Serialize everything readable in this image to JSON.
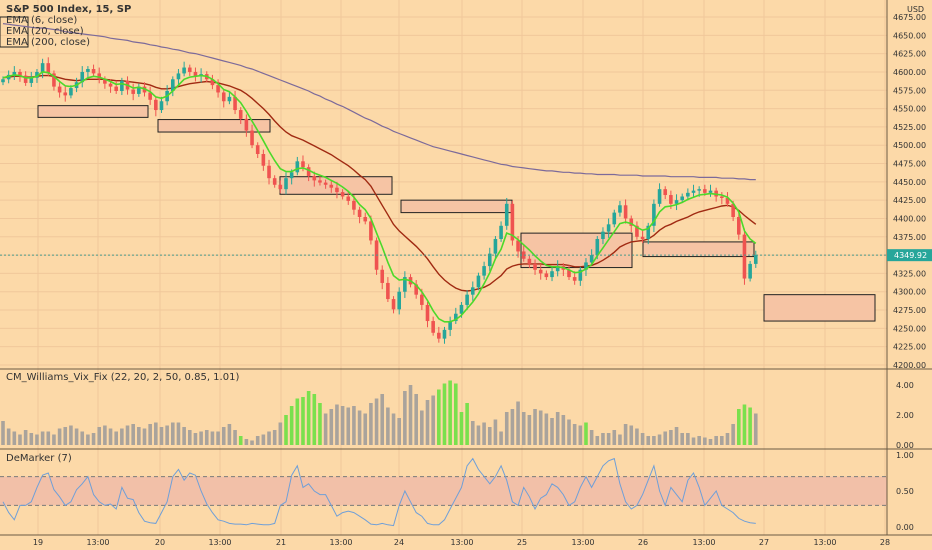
{
  "header": {
    "symbol": "S&P 500 Index, 15, SP",
    "currency": "USD",
    "ema_fast": "EMA (6, close)",
    "ema_mid": "EMA (20, close)",
    "ema_slow": "EMA (200, close)"
  },
  "colors": {
    "background": "#fcd9a8",
    "grid": "#f0c79a",
    "up": "#26a69a",
    "down": "#ef5350",
    "ema_fast": "#4cd92a",
    "ema_mid": "#a02a12",
    "ema_slow": "#7c6a9a",
    "zone_fill": "#f6c4a4",
    "vix_high": "#7ae04d",
    "vix_low": "#a9a39c",
    "dem_line": "#6f9fd8",
    "dem_band": "#f2c0a8"
  },
  "price_panel": {
    "last_price": "4349.92",
    "y_ticks": [
      "4675.00",
      "4650.00",
      "4625.00",
      "4600.00",
      "4575.00",
      "4550.00",
      "4525.00",
      "4500.00",
      "4475.00",
      "4450.00",
      "4425.00",
      "4400.00",
      "4375.00",
      "4350.00",
      "4325.00",
      "4300.00",
      "4275.00",
      "4250.00",
      "4225.00",
      "4200.00"
    ]
  },
  "vix_panel": {
    "title": "CM_Williams_Vix_Fix (22, 20, 2, 50, 0.85, 1.01)",
    "y_ticks": [
      "4.00",
      "2.00",
      "0.00"
    ]
  },
  "dem_panel": {
    "title": "DeMarker (7)",
    "y_ticks": [
      "1.00",
      "0.50",
      "0.00"
    ]
  },
  "x_ticks": [
    "19",
    "13:00",
    "20",
    "13:00",
    "21",
    "13:00",
    "24",
    "13:00",
    "25",
    "13:00",
    "26",
    "13:00",
    "27",
    "13:00",
    "28"
  ],
  "chart_data": {
    "type": "candlestick",
    "title": "S&P 500 Index, 15, SP",
    "ylim": [
      4200,
      4685
    ],
    "closes": [
      4590,
      4596,
      4600,
      4595,
      4585,
      4592,
      4600,
      4612,
      4598,
      4580,
      4572,
      4568,
      4578,
      4586,
      4600,
      4604,
      4598,
      4590,
      4584,
      4580,
      4574,
      4588,
      4576,
      4570,
      4580,
      4572,
      4562,
      4548,
      4560,
      4574,
      4590,
      4598,
      4606,
      4600,
      4594,
      4597,
      4590,
      4582,
      4572,
      4560,
      4566,
      4548,
      4536,
      4520,
      4500,
      4488,
      4472,
      4455,
      4446,
      4440,
      4455,
      4463,
      4478,
      4470,
      4458,
      4452,
      4449,
      4446,
      4442,
      4436,
      4430,
      4424,
      4412,
      4402,
      4396,
      4370,
      4330,
      4312,
      4290,
      4276,
      4300,
      4320,
      4310,
      4296,
      4282,
      4260,
      4244,
      4236,
      4248,
      4260,
      4270,
      4282,
      4296,
      4306,
      4322,
      4335,
      4352,
      4372,
      4390,
      4420,
      4370,
      4355,
      4345,
      4338,
      4330,
      4325,
      4320,
      4328,
      4335,
      4330,
      4320,
      4315,
      4330,
      4340,
      4350,
      4372,
      4382,
      4392,
      4408,
      4418,
      4400,
      4390,
      4375,
      4372,
      4390,
      4420,
      4440,
      4432,
      4420,
      4425,
      4430,
      4435,
      4438,
      4440,
      4435,
      4438,
      4430,
      4428,
      4420,
      4402,
      4378,
      4318,
      4338,
      4350
    ],
    "ema_fast": [
      4592,
      4594,
      4596,
      4595,
      4592,
      4592,
      4594,
      4600,
      4599,
      4594,
      4587,
      4581,
      4580,
      4582,
      4587,
      4592,
      4594,
      4593,
      4590,
      4587,
      4583,
      4584,
      4582,
      4578,
      4579,
      4577,
      4573,
      4566,
      4564,
      4567,
      4574,
      4582,
      4590,
      4593,
      4594,
      4595,
      4594,
      4590,
      4584,
      4576,
      4573,
      4566,
      4558,
      4546,
      4533,
      4520,
      4506,
      4492,
      4479,
      4468,
      4464,
      4464,
      4468,
      4469,
      4466,
      4462,
      4459,
      4456,
      4452,
      4448,
      4443,
      4437,
      4429,
      4419,
      4412,
      4400,
      4380,
      4361,
      4340,
      4322,
      4316,
      4317,
      4315,
      4309,
      4300,
      4288,
      4274,
      4263,
      4259,
      4259,
      4262,
      4268,
      4277,
      4286,
      4297,
      4311,
      4326,
      4345,
      4358,
      4380,
      4377,
      4371,
      4364,
      4357,
      4349,
      4342,
      4336,
      4334,
      4334,
      4333,
      4330,
      4326,
      4327,
      4331,
      4337,
      4349,
      4360,
      4371,
      4382,
      4393,
      4395,
      4393,
      4388,
      4384,
      4386,
      4396,
      4409,
      4416,
      4417,
      4419,
      4422,
      4426,
      4429,
      4432,
      4433,
      4434,
      4433,
      4432,
      4429,
      4421,
      4409,
      4383,
      4372,
      4366
    ],
    "ema_mid": [
      4592,
      4593,
      4594,
      4594,
      4593,
      4593,
      4594,
      4595,
      4595,
      4594,
      4592,
      4590,
      4589,
      4588,
      4589,
      4590,
      4590,
      4590,
      4590,
      4589,
      4588,
      4588,
      4587,
      4586,
      4585,
      4584,
      4582,
      4579,
      4577,
      4577,
      4578,
      4580,
      4582,
      4584,
      4585,
      4586,
      4587,
      4586,
      4585,
      4583,
      4581,
      4578,
      4575,
      4570,
      4564,
      4557,
      4550,
      4542,
      4533,
      4525,
      4518,
      4513,
      4510,
      4507,
      4503,
      4499,
      4495,
      4491,
      4487,
      4482,
      4477,
      4472,
      4466,
      4459,
      4453,
      4444,
      4431,
      4418,
      4405,
      4392,
      4383,
      4376,
      4369,
      4362,
      4354,
      4345,
      4334,
      4324,
      4316,
      4310,
      4305,
      4302,
      4301,
      4302,
      4304,
      4306,
      4310,
      4316,
      4322,
      4331,
      4335,
      4337,
      4338,
      4338,
      4338,
      4338,
      4337,
      4337,
      4337,
      4337,
      4336,
      4334,
      4334,
      4335,
      4336,
      4339,
      4343,
      4348,
      4354,
      4361,
      4365,
      4368,
      4369,
      4370,
      4372,
      4377,
      4384,
      4389,
      4392,
      4396,
      4399,
      4402,
      4406,
      4409,
      4411,
      4413,
      4415,
      4417,
      4418,
      4416,
      4411,
      4404,
      4398,
      4392
    ],
    "ema_slow": [
      4666,
      4665,
      4664,
      4663,
      4662,
      4661,
      4660,
      4660,
      4659,
      4658,
      4657,
      4655,
      4654,
      4653,
      4652,
      4651,
      4650,
      4649,
      4648,
      4646,
      4645,
      4644,
      4643,
      4641,
      4640,
      4639,
      4637,
      4636,
      4634,
      4633,
      4631,
      4630,
      4628,
      4626,
      4625,
      4623,
      4621,
      4619,
      4617,
      4615,
      4613,
      4611,
      4609,
      4606,
      4604,
      4601,
      4598,
      4595,
      4592,
      4589,
      4586,
      4583,
      4580,
      4577,
      4574,
      4570,
      4567,
      4563,
      4560,
      4556,
      4553,
      4549,
      4545,
      4541,
      4537,
      4534,
      4530,
      4526,
      4523,
      4519,
      4516,
      4513,
      4510,
      4507,
      4504,
      4501,
      4498,
      4496,
      4494,
      4492,
      4490,
      4488,
      4486,
      4484,
      4482,
      4480,
      4478,
      4476,
      4474,
      4473,
      4471,
      4470,
      4469,
      4468,
      4467,
      4466,
      4465,
      4465,
      4464,
      4463,
      4463,
      4462,
      4462,
      4461,
      4461,
      4460,
      4460,
      4460,
      4460,
      4459,
      4459,
      4459,
      4459,
      4458,
      4458,
      4458,
      4458,
      4458,
      4457,
      4457,
      4457,
      4457,
      4457,
      4456,
      4456,
      4456,
      4456,
      4455,
      4455,
      4455,
      4454,
      4454,
      4453,
      4453
    ],
    "zones": [
      {
        "x0": 38,
        "x1": 148,
        "y_top": 4554,
        "y_bottom": 4538
      },
      {
        "x0": 158,
        "x1": 270,
        "y_top": 4535,
        "y_bottom": 4518
      },
      {
        "x0": 280,
        "x1": 392,
        "y_top": 4457,
        "y_bottom": 4433
      },
      {
        "x0": 401,
        "x1": 512,
        "y_top": 4425,
        "y_bottom": 4408
      },
      {
        "x0": 521,
        "x1": 632,
        "y_top": 4380,
        "y_bottom": 4333
      },
      {
        "x0": 643,
        "x1": 754,
        "y_top": 4368,
        "y_bottom": 4348
      },
      {
        "x0": 764,
        "x1": 875,
        "y_top": 4296,
        "y_bottom": 4260
      }
    ],
    "vix": [
      1.6,
      1.1,
      0.9,
      0.7,
      1.0,
      0.8,
      0.7,
      0.9,
      0.9,
      0.7,
      1.1,
      1.2,
      1.3,
      1.1,
      0.9,
      0.7,
      0.8,
      1.2,
      1.3,
      1.1,
      0.9,
      1.1,
      1.3,
      1.4,
      1.2,
      1.1,
      1.4,
      1.5,
      1.2,
      1.3,
      1.5,
      1.5,
      1.2,
      1.0,
      0.8,
      0.9,
      1.0,
      0.9,
      0.9,
      1.2,
      1.4,
      1.0,
      0.6,
      0.4,
      0.3,
      0.6,
      0.7,
      0.9,
      1.0,
      1.5,
      2.0,
      2.6,
      3.1,
      3.2,
      3.6,
      3.4,
      2.8,
      2.1,
      2.4,
      2.7,
      2.6,
      2.5,
      2.6,
      2.3,
      2.1,
      2.8,
      3.1,
      3.4,
      2.5,
      2.1,
      1.8,
      3.6,
      4.0,
      3.4,
      2.3,
      3.0,
      3.3,
      3.7,
      4.1,
      4.3,
      4.1,
      2.2,
      2.8,
      1.6,
      1.3,
      1.5,
      1.2,
      1.7,
      0.9,
      2.2,
      2.4,
      2.9,
      2.2,
      2.0,
      2.4,
      2.3,
      2.1,
      1.8,
      2.2,
      2.0,
      1.7,
      1.4,
      1.3,
      1.5,
      1.0,
      0.6,
      0.8,
      0.8,
      1.0,
      0.7,
      1.4,
      1.3,
      1.1,
      0.8,
      0.6,
      0.6,
      0.7,
      0.9,
      1.0,
      1.2,
      0.8,
      0.8,
      0.5,
      0.6,
      0.5,
      0.4,
      0.6,
      0.6,
      0.8,
      1.4,
      2.4,
      2.7,
      2.5,
      2.1
    ],
    "vix_green": [
      42,
      50,
      51,
      52,
      53,
      54,
      55,
      56,
      77,
      78,
      79,
      80,
      81,
      82,
      103,
      130,
      131,
      132
    ],
    "demarker": [
      0.35,
      0.2,
      0.1,
      0.3,
      0.3,
      0.35,
      0.55,
      0.72,
      0.75,
      0.52,
      0.42,
      0.3,
      0.35,
      0.52,
      0.6,
      0.7,
      0.45,
      0.35,
      0.3,
      0.32,
      0.25,
      0.55,
      0.4,
      0.38,
      0.2,
      0.08,
      0.06,
      0.05,
      0.2,
      0.35,
      0.7,
      0.8,
      0.65,
      0.75,
      0.72,
      0.5,
      0.32,
      0.2,
      0.1,
      0.08,
      0.05,
      0.04,
      0.04,
      0.03,
      0.05,
      0.04,
      0.03,
      0.03,
      0.05,
      0.3,
      0.35,
      0.72,
      0.85,
      0.55,
      0.6,
      0.5,
      0.45,
      0.45,
      0.3,
      0.15,
      0.2,
      0.22,
      0.2,
      0.15,
      0.1,
      0.04,
      0.03,
      0.05,
      0.03,
      0.02,
      0.3,
      0.5,
      0.35,
      0.2,
      0.15,
      0.05,
      0.03,
      0.03,
      0.1,
      0.25,
      0.4,
      0.55,
      0.85,
      0.95,
      0.8,
      0.7,
      0.6,
      0.7,
      0.85,
      0.65,
      0.35,
      0.3,
      0.55,
      0.42,
      0.25,
      0.4,
      0.45,
      0.6,
      0.55,
      0.45,
      0.3,
      0.35,
      0.55,
      0.7,
      0.55,
      0.7,
      0.85,
      0.92,
      0.95,
      0.6,
      0.35,
      0.25,
      0.3,
      0.45,
      0.65,
      0.85,
      0.5,
      0.3,
      0.55,
      0.45,
      0.35,
      0.65,
      0.75,
      0.55,
      0.3,
      0.4,
      0.5,
      0.3,
      0.25,
      0.2,
      0.12,
      0.08,
      0.06,
      0.05
    ],
    "dem_levels": [
      0.3,
      0.7
    ]
  }
}
